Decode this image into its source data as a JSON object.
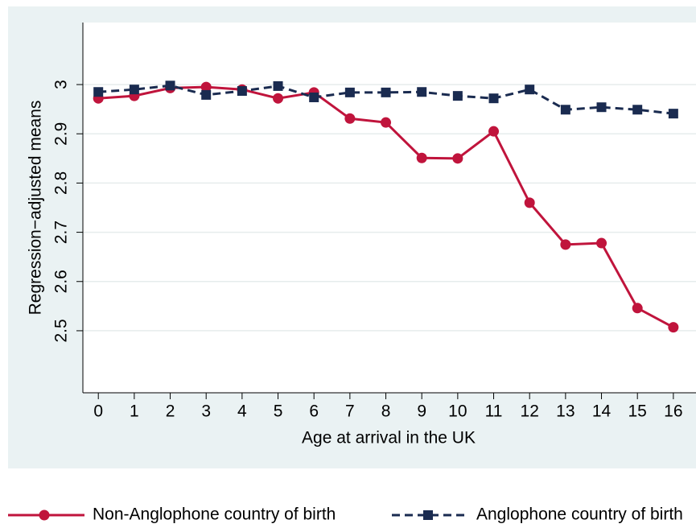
{
  "chart_data": {
    "type": "line",
    "x_label": "Age at arrival in the UK",
    "y_label": "Regression−adjusted means",
    "x": [
      0,
      1,
      2,
      3,
      4,
      5,
      6,
      7,
      8,
      9,
      10,
      11,
      12,
      13,
      14,
      15,
      16
    ],
    "series": [
      {
        "name": "Non-Anglophone country of birth",
        "color": "#c0143c",
        "marker": "circle",
        "dash": false,
        "values": [
          2.972,
          2.977,
          2.993,
          2.995,
          2.99,
          2.972,
          2.984,
          2.931,
          2.923,
          2.851,
          2.85,
          2.905,
          2.76,
          2.675,
          2.678,
          2.546,
          2.507
        ]
      },
      {
        "name": "Anglophone country of birth",
        "color": "#1a2b50",
        "marker": "square",
        "dash": true,
        "values": [
          2.985,
          2.99,
          2.998,
          2.979,
          2.987,
          2.997,
          2.974,
          2.984,
          2.984,
          2.985,
          2.977,
          2.972,
          2.99,
          2.949,
          2.954,
          2.949,
          2.941
        ]
      }
    ],
    "xlim": [
      -0.43,
      16.63
    ],
    "xticks": [
      0,
      1,
      2,
      3,
      4,
      5,
      6,
      7,
      8,
      9,
      10,
      11,
      12,
      13,
      14,
      15,
      16
    ],
    "ylim": [
      2.374,
      3.126
    ],
    "yticks": [
      2.5,
      2.6,
      2.7,
      2.8,
      2.9,
      3
    ],
    "grid": true,
    "legend": "bottom"
  }
}
